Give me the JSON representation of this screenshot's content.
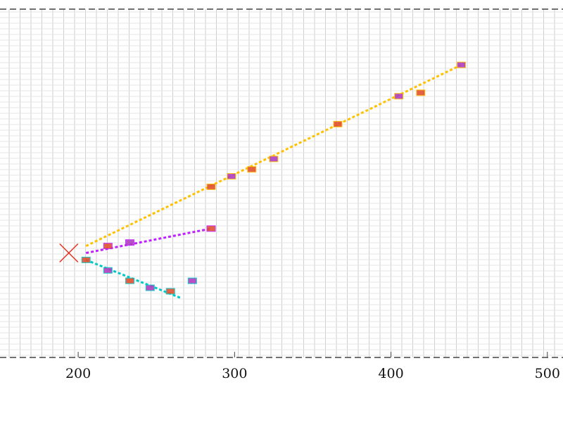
{
  "chart_data": {
    "type": "scatter",
    "title": "",
    "xlabel": "",
    "ylabel": "",
    "xlim": [
      150,
      510
    ],
    "ylim": [
      0,
      100
    ],
    "grid": true,
    "x_ticks": [
      {
        "value": 200,
        "label": "200"
      },
      {
        "value": 300,
        "label": "300"
      },
      {
        "value": 400,
        "label": "400"
      },
      {
        "value": 500,
        "label": "500"
      }
    ],
    "start_marker": {
      "x": 194,
      "y": 30
    },
    "series": [
      {
        "color": "#ffc000",
        "line": [
          [
            205,
            32
          ],
          [
            445,
            84
          ]
        ],
        "points": [
          [
            285,
            49
          ],
          [
            298,
            52
          ],
          [
            311,
            54
          ],
          [
            325,
            57
          ],
          [
            366,
            67
          ],
          [
            405,
            75
          ],
          [
            419,
            76
          ],
          [
            445,
            84
          ]
        ]
      },
      {
        "color": "#c020ff",
        "line": [
          [
            205,
            30
          ],
          [
            285,
            37
          ]
        ],
        "points": [
          [
            219,
            32
          ],
          [
            233,
            33
          ],
          [
            285,
            37
          ]
        ]
      },
      {
        "color": "#00c8c8",
        "line": [
          [
            205,
            28
          ],
          [
            266,
            17
          ]
        ],
        "points": [
          [
            205,
            28
          ],
          [
            219,
            25
          ],
          [
            233,
            22
          ],
          [
            246,
            20
          ],
          [
            259,
            19
          ],
          [
            273,
            22
          ]
        ]
      }
    ],
    "marker_colors": [
      "#e05030",
      "#b040c0"
    ]
  }
}
